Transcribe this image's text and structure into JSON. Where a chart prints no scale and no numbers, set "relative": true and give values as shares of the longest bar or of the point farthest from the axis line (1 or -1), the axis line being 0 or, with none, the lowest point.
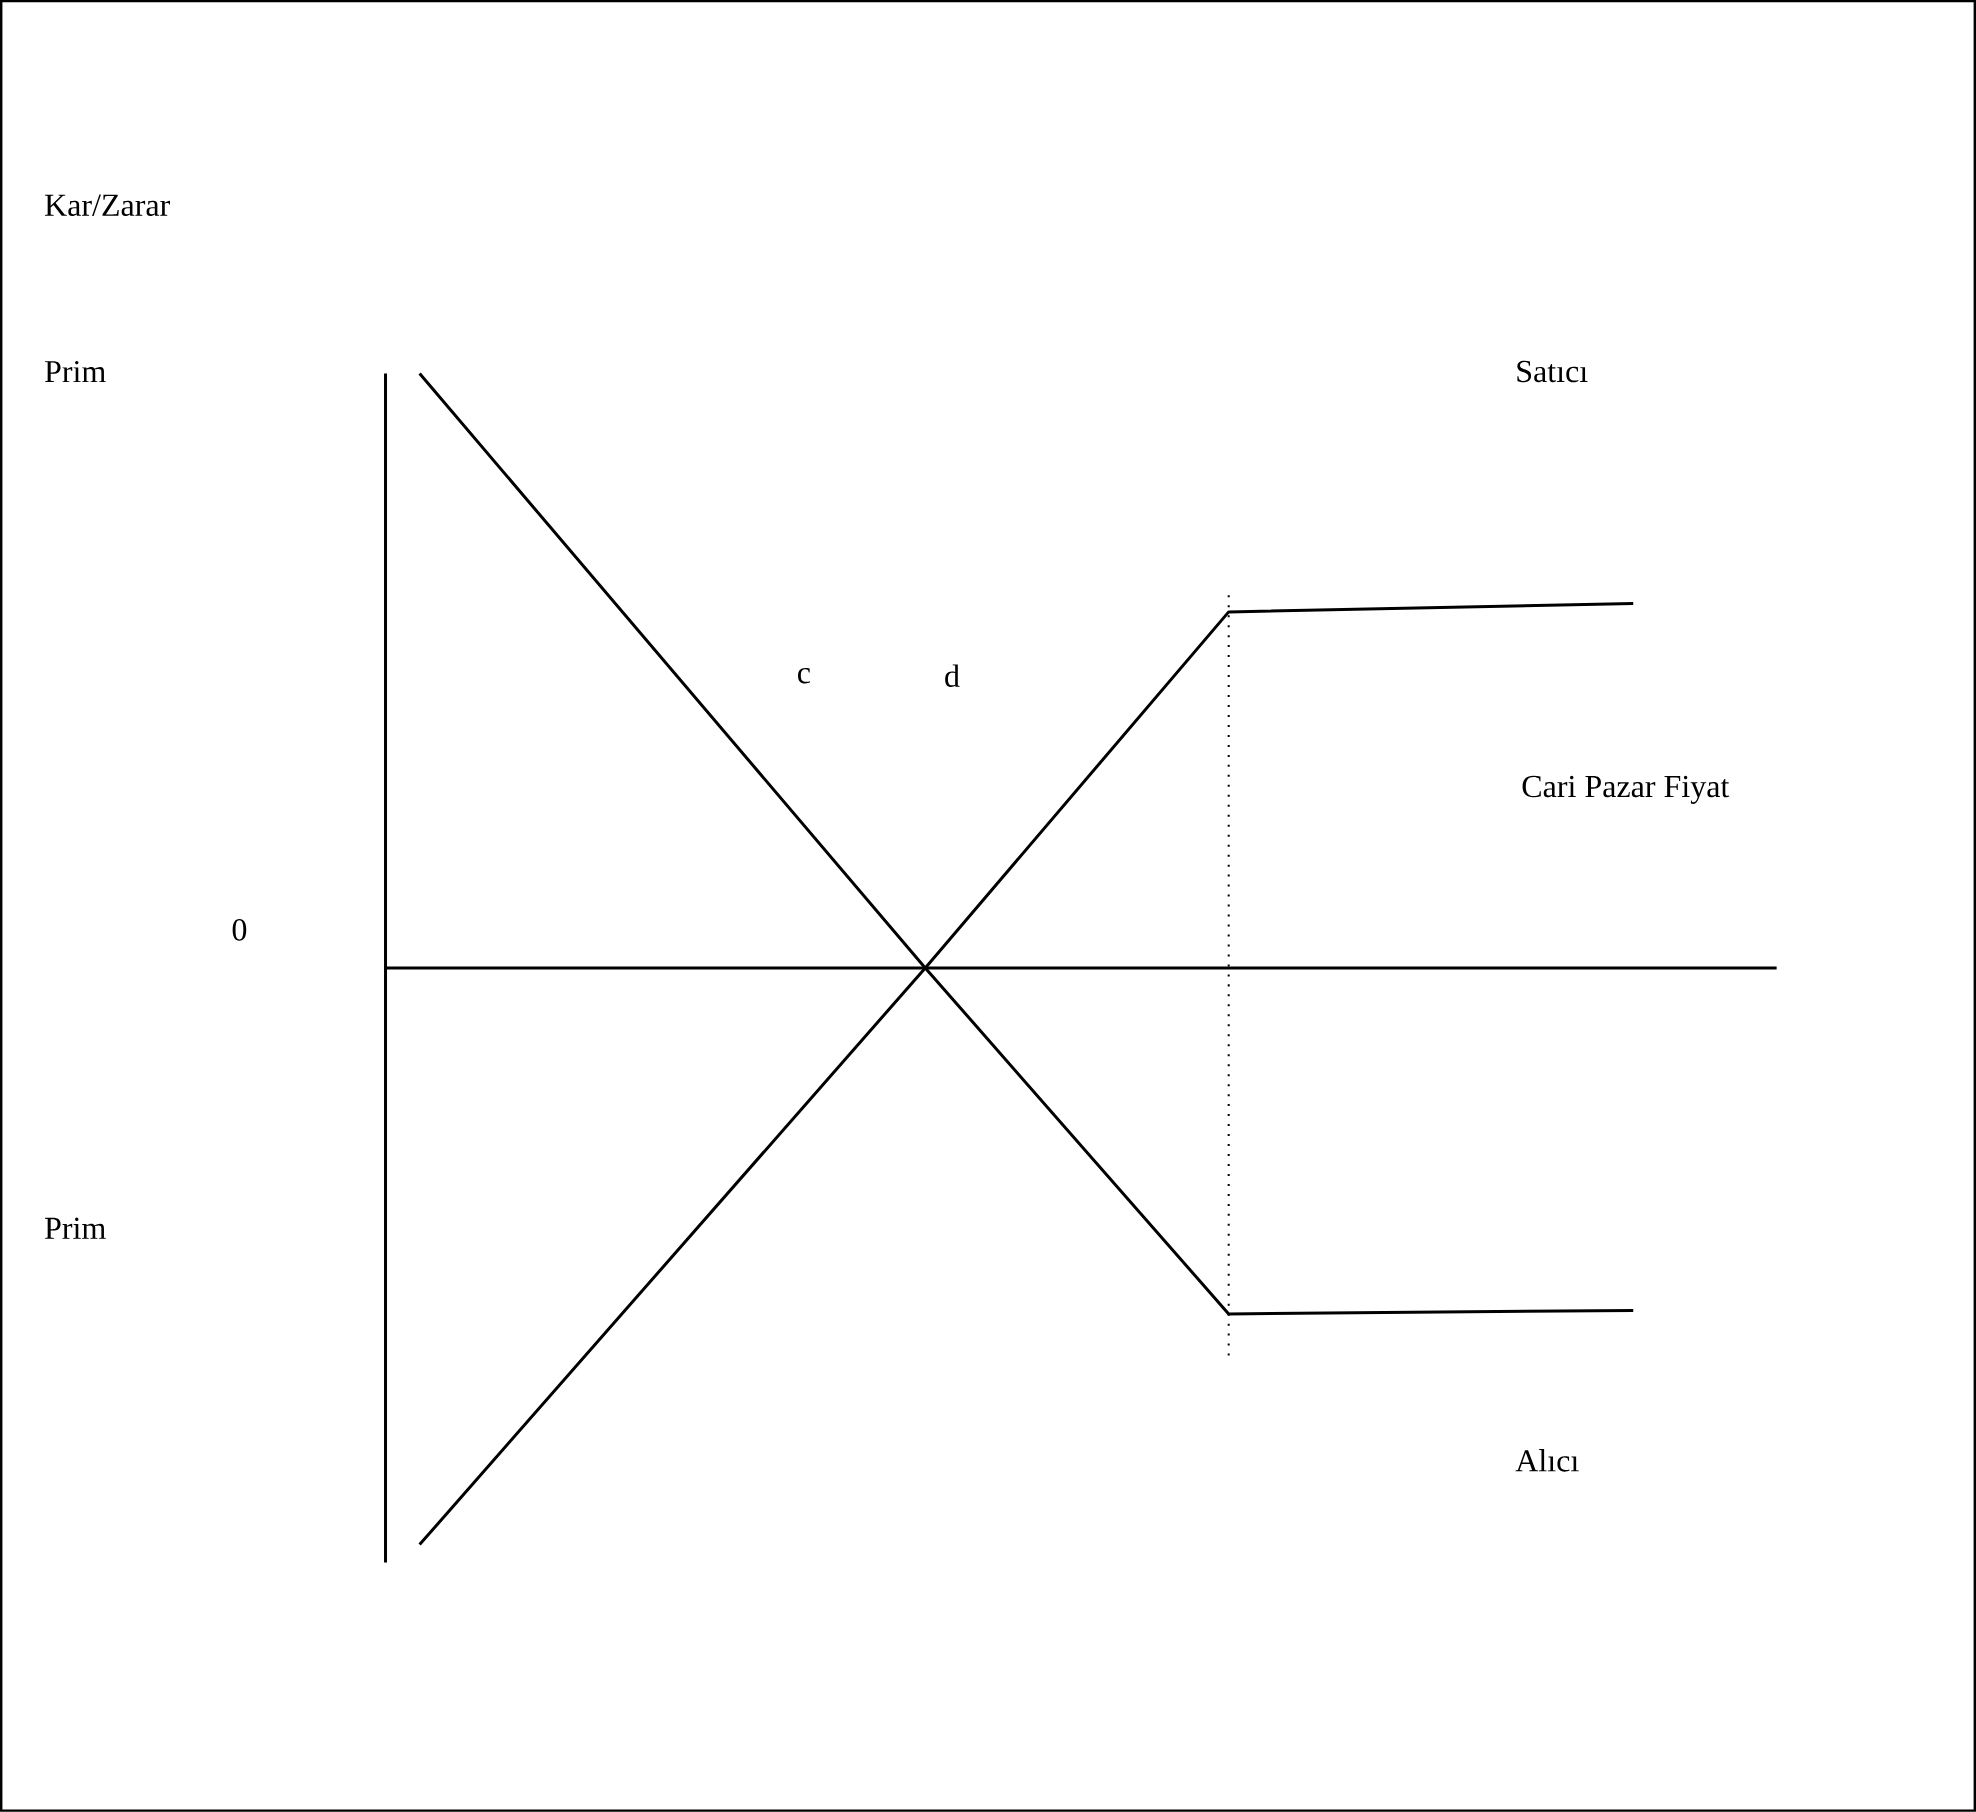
{
  "chart_data": {
    "type": "line",
    "relative": true,
    "xlabel": "Cari Pazar Fiyat",
    "line_style": "solid",
    "categories": [
      null,
      null,
      null,
      null,
      null,
      null,
      null,
      null,
      null,
      null,
      null,
      null,
      null
    ],
    "annotations": [
      "Kar/Zarar",
      "Prim",
      "0",
      "c",
      "d",
      "Prim",
      "Satıcı",
      "Alıcı"
    ],
    "series": [
      {
        "color": "#000000",
        "values": [
          1,
          null,
          null,
          null,
          null,
          0,
          null,
          null,
          -0.582,
          null,
          null,
          null,
          -0.576
        ]
      },
      {
        "color": "#000000",
        "values": [
          -0.97,
          null,
          null,
          null,
          null,
          0,
          null,
          null,
          0.599,
          null,
          null,
          null,
          0.613
        ]
      }
    ]
  }
}
